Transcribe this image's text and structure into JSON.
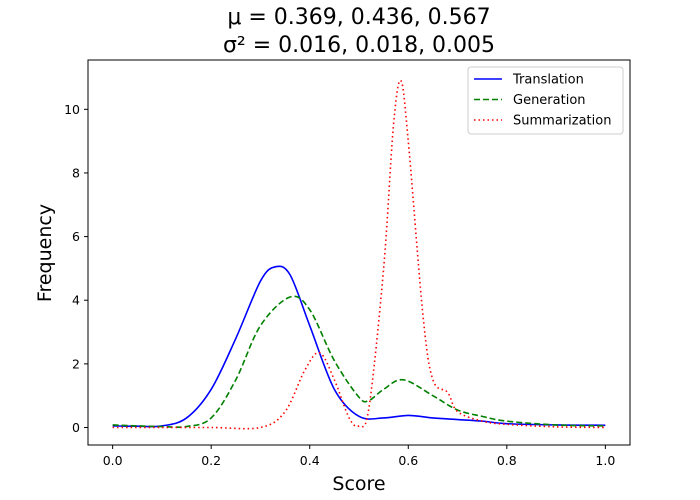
{
  "chart_data": {
    "type": "line",
    "title_lines": [
      "μ = 0.369, 0.436, 0.567",
      "σ² = 0.016, 0.018, 0.005"
    ],
    "xlabel": "Score",
    "ylabel": "Frequency",
    "xlim": [
      -0.05,
      1.05
    ],
    "ylim": [
      -0.55,
      11.55
    ],
    "xticks": [
      0.0,
      0.2,
      0.4,
      0.6,
      0.8,
      1.0
    ],
    "xtick_labels": [
      "0.0",
      "0.2",
      "0.4",
      "0.6",
      "0.8",
      "1.0"
    ],
    "yticks": [
      0,
      2,
      4,
      6,
      8,
      10
    ],
    "ytick_labels": [
      "0",
      "2",
      "4",
      "6",
      "8",
      "10"
    ],
    "grid": false,
    "legend_position": "top-right",
    "series": [
      {
        "name": "Translation",
        "color": "#0000ff",
        "style": "solid",
        "x": [
          0.0,
          0.05,
          0.1,
          0.15,
          0.2,
          0.25,
          0.3,
          0.33,
          0.36,
          0.4,
          0.45,
          0.5,
          0.55,
          0.6,
          0.65,
          0.7,
          0.75,
          0.8,
          0.9,
          1.0
        ],
        "y": [
          0.05,
          0.04,
          0.05,
          0.3,
          1.2,
          2.8,
          4.6,
          5.05,
          4.8,
          3.2,
          1.2,
          0.35,
          0.3,
          0.38,
          0.3,
          0.25,
          0.2,
          0.12,
          0.08,
          0.07
        ]
      },
      {
        "name": "Generation",
        "color": "#008000",
        "style": "dashed",
        "x": [
          0.0,
          0.05,
          0.1,
          0.15,
          0.2,
          0.25,
          0.3,
          0.36,
          0.4,
          0.45,
          0.5,
          0.52,
          0.55,
          0.59,
          0.65,
          0.7,
          0.75,
          0.8,
          0.9,
          1.0
        ],
        "y": [
          0.08,
          0.05,
          0.03,
          0.03,
          0.3,
          1.5,
          3.2,
          4.1,
          3.7,
          2.1,
          0.95,
          0.85,
          1.2,
          1.5,
          1.0,
          0.55,
          0.35,
          0.2,
          0.08,
          0.05
        ]
      },
      {
        "name": "Summarization",
        "color": "#ff0000",
        "style": "dotted",
        "x": [
          0.0,
          0.1,
          0.2,
          0.3,
          0.35,
          0.39,
          0.42,
          0.45,
          0.48,
          0.5,
          0.52,
          0.55,
          0.57,
          0.585,
          0.6,
          0.63,
          0.65,
          0.68,
          0.7,
          0.75,
          0.8,
          0.9,
          1.0
        ],
        "y": [
          0.0,
          0.0,
          0.0,
          0.0,
          0.5,
          1.8,
          2.35,
          1.5,
          0.3,
          0.05,
          0.6,
          5.0,
          9.5,
          10.9,
          9.0,
          3.5,
          1.5,
          1.1,
          0.5,
          0.2,
          0.1,
          0.02,
          0.0
        ]
      }
    ]
  }
}
